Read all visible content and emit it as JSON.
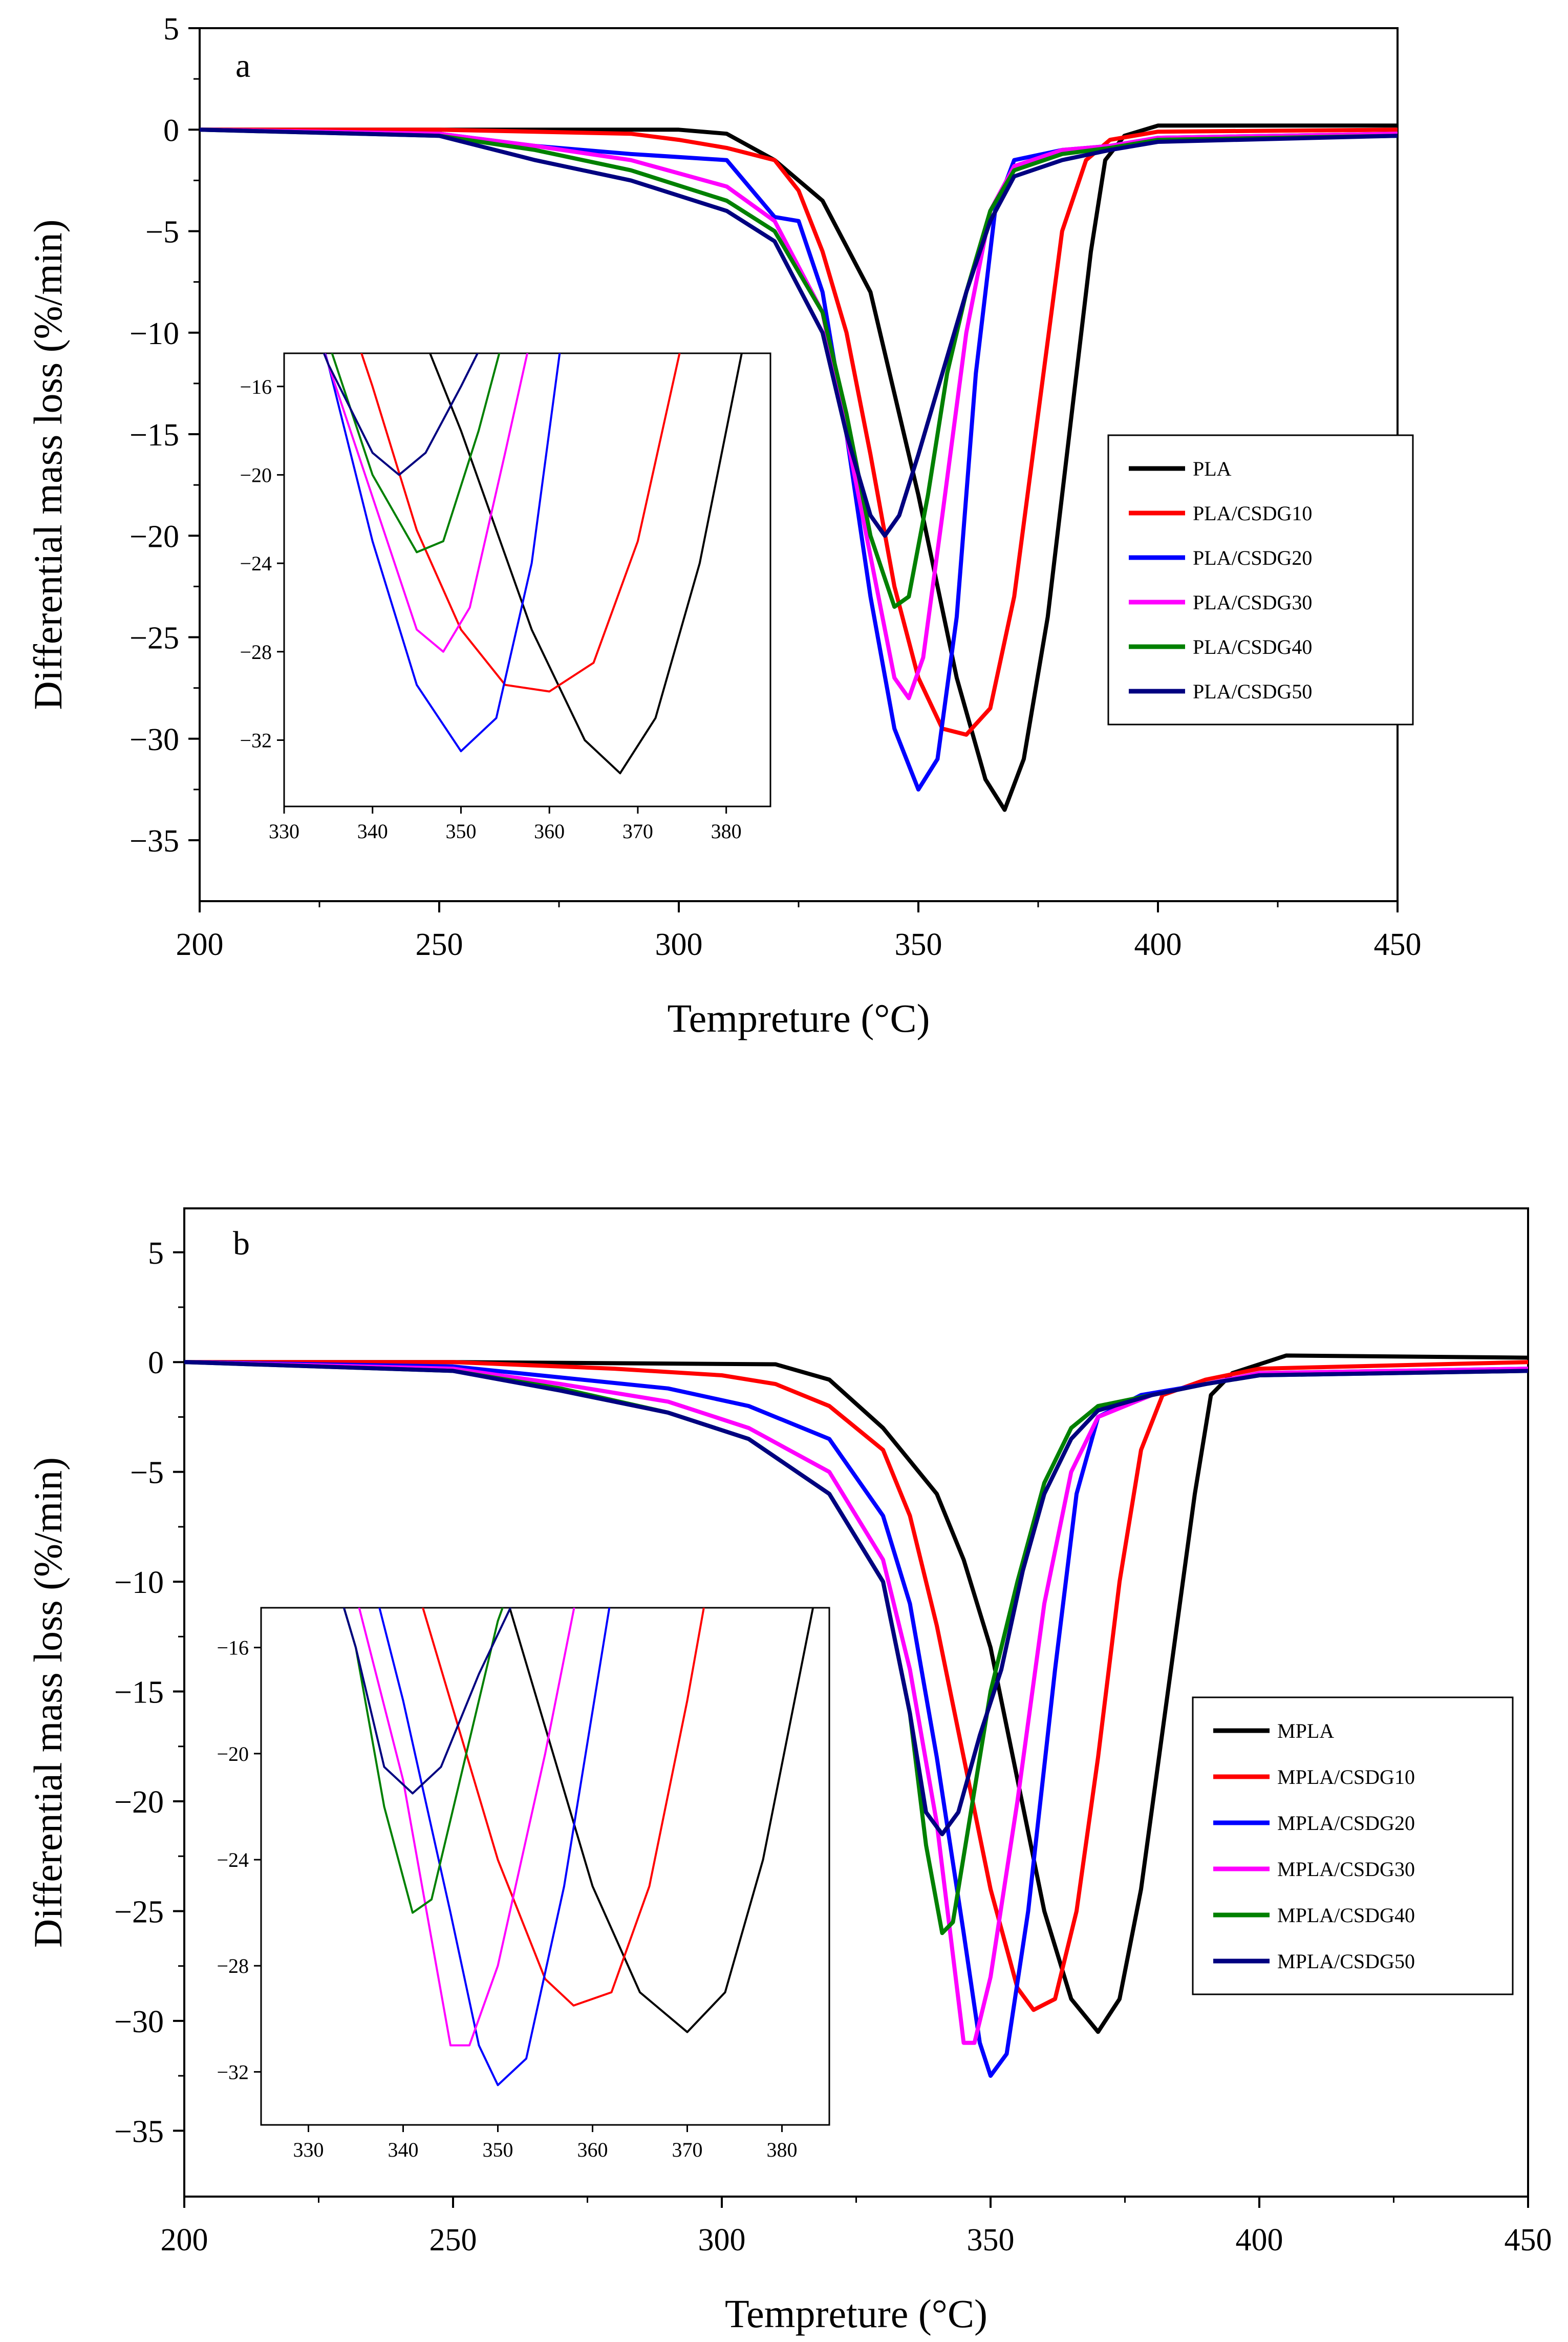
{
  "chart_data": [
    {
      "panel": "a",
      "type": "line",
      "xlabel": "Tempreture (°C)",
      "ylabel": "Differential mass loss (%/min)",
      "xlim": [
        200,
        450
      ],
      "ylim": [
        -38,
        5
      ],
      "xticks": [
        200,
        250,
        300,
        350,
        400,
        450
      ],
      "yticks": [
        5,
        0,
        -5,
        -10,
        -15,
        -20,
        -25,
        -30,
        -35
      ],
      "grid": false,
      "legend_position": "right",
      "series": [
        {
          "name": "PLA",
          "color": "#000000",
          "points": [
            [
              200,
              0
            ],
            [
              250,
              0
            ],
            [
              300,
              0
            ],
            [
              310,
              -0.2
            ],
            [
              320,
              -1.5
            ],
            [
              330,
              -3.5
            ],
            [
              340,
              -8
            ],
            [
              350,
              -18
            ],
            [
              358,
              -27
            ],
            [
              364,
              -32
            ],
            [
              368,
              -33.5
            ],
            [
              372,
              -31
            ],
            [
              377,
              -24
            ],
            [
              382,
              -14
            ],
            [
              386,
              -6
            ],
            [
              389,
              -1.5
            ],
            [
              393,
              -0.3
            ],
            [
              400,
              0.2
            ],
            [
              450,
              0.2
            ]
          ]
        },
        {
          "name": "PLA/CSDG10",
          "color": "#ff0000",
          "points": [
            [
              200,
              0
            ],
            [
              250,
              0
            ],
            [
              290,
              -0.2
            ],
            [
              300,
              -0.5
            ],
            [
              310,
              -0.9
            ],
            [
              320,
              -1.5
            ],
            [
              325,
              -3
            ],
            [
              330,
              -6
            ],
            [
              335,
              -10
            ],
            [
              340,
              -16
            ],
            [
              345,
              -22.5
            ],
            [
              350,
              -27
            ],
            [
              355,
              -29.5
            ],
            [
              360,
              -29.8
            ],
            [
              365,
              -28.5
            ],
            [
              370,
              -23
            ],
            [
              375,
              -14
            ],
            [
              380,
              -5
            ],
            [
              385,
              -1.5
            ],
            [
              390,
              -0.5
            ],
            [
              400,
              -0.1
            ],
            [
              450,
              0
            ]
          ]
        },
        {
          "name": "PLA/CSDG20",
          "color": "#0000ff",
          "points": [
            [
              200,
              0
            ],
            [
              250,
              -0.2
            ],
            [
              270,
              -0.8
            ],
            [
              290,
              -1.2
            ],
            [
              310,
              -1.5
            ],
            [
              320,
              -4.3
            ],
            [
              325,
              -4.5
            ],
            [
              330,
              -8
            ],
            [
              335,
              -15
            ],
            [
              340,
              -23
            ],
            [
              345,
              -29.5
            ],
            [
              350,
              -32.5
            ],
            [
              354,
              -31
            ],
            [
              358,
              -24
            ],
            [
              362,
              -12
            ],
            [
              366,
              -4
            ],
            [
              370,
              -1.5
            ],
            [
              380,
              -1
            ],
            [
              390,
              -0.8
            ],
            [
              400,
              -0.4
            ],
            [
              450,
              -0.2
            ]
          ]
        },
        {
          "name": "PLA/CSDG30",
          "color": "#ff00ff",
          "points": [
            [
              200,
              0
            ],
            [
              250,
              -0.2
            ],
            [
              270,
              -0.8
            ],
            [
              290,
              -1.5
            ],
            [
              310,
              -2.8
            ],
            [
              320,
              -4.5
            ],
            [
              330,
              -9
            ],
            [
              335,
              -15
            ],
            [
              340,
              -21
            ],
            [
              345,
              -27
            ],
            [
              348,
              -28
            ],
            [
              351,
              -26
            ],
            [
              355,
              -19
            ],
            [
              360,
              -10
            ],
            [
              365,
              -4
            ],
            [
              370,
              -1.8
            ],
            [
              380,
              -1
            ],
            [
              390,
              -0.8
            ],
            [
              400,
              -0.4
            ],
            [
              450,
              -0.2
            ]
          ]
        },
        {
          "name": "PLA/CSDG40",
          "color": "#008000",
          "points": [
            [
              200,
              0
            ],
            [
              250,
              -0.3
            ],
            [
              270,
              -1
            ],
            [
              290,
              -2
            ],
            [
              310,
              -3.5
            ],
            [
              320,
              -5
            ],
            [
              330,
              -9
            ],
            [
              335,
              -14
            ],
            [
              340,
              -20
            ],
            [
              345,
              -23.5
            ],
            [
              348,
              -23
            ],
            [
              352,
              -18
            ],
            [
              356,
              -12
            ],
            [
              360,
              -8
            ],
            [
              365,
              -4
            ],
            [
              370,
              -2
            ],
            [
              380,
              -1.2
            ],
            [
              390,
              -0.9
            ],
            [
              400,
              -0.5
            ],
            [
              450,
              -0.3
            ]
          ]
        },
        {
          "name": "PLA/CSDG50",
          "color": "#000080",
          "points": [
            [
              200,
              0
            ],
            [
              250,
              -0.3
            ],
            [
              270,
              -1.5
            ],
            [
              290,
              -2.5
            ],
            [
              310,
              -4
            ],
            [
              320,
              -5.5
            ],
            [
              330,
              -10
            ],
            [
              335,
              -15
            ],
            [
              340,
              -19
            ],
            [
              343,
              -20
            ],
            [
              346,
              -19
            ],
            [
              350,
              -16
            ],
            [
              355,
              -12
            ],
            [
              360,
              -8
            ],
            [
              365,
              -4.5
            ],
            [
              370,
              -2.3
            ],
            [
              380,
              -1.5
            ],
            [
              390,
              -1
            ],
            [
              400,
              -0.6
            ],
            [
              450,
              -0.3
            ]
          ]
        }
      ],
      "inset": {
        "xlim": [
          330,
          385
        ],
        "ylim": [
          -35,
          -14.5
        ],
        "xticks": [
          330,
          340,
          350,
          360,
          370,
          380
        ],
        "yticks": [
          -16,
          -20,
          -24,
          -28,
          -32
        ]
      }
    },
    {
      "panel": "b",
      "type": "line",
      "xlabel": "Tempreture (°C)",
      "ylabel": "Differential mass loss (%/min)",
      "xlim": [
        200,
        450
      ],
      "ylim": [
        -38,
        7
      ],
      "xticks": [
        200,
        250,
        300,
        350,
        400,
        450
      ],
      "yticks": [
        5,
        0,
        -5,
        -10,
        -15,
        -20,
        -25,
        -30,
        -35
      ],
      "grid": false,
      "legend_position": "right",
      "series": [
        {
          "name": "MPLA",
          "color": "#000000",
          "points": [
            [
              200,
              0
            ],
            [
              250,
              0
            ],
            [
              310,
              -0.1
            ],
            [
              320,
              -0.8
            ],
            [
              330,
              -3
            ],
            [
              340,
              -6
            ],
            [
              345,
              -9
            ],
            [
              350,
              -13
            ],
            [
              355,
              -19
            ],
            [
              360,
              -25
            ],
            [
              365,
              -29
            ],
            [
              370,
              -30.5
            ],
            [
              374,
              -29
            ],
            [
              378,
              -24
            ],
            [
              383,
              -15
            ],
            [
              388,
              -6
            ],
            [
              391,
              -1.5
            ],
            [
              395,
              -0.5
            ],
            [
              405,
              0.3
            ],
            [
              450,
              0.2
            ]
          ]
        },
        {
          "name": "MPLA/CSDG10",
          "color": "#ff0000",
          "points": [
            [
              200,
              0
            ],
            [
              250,
              0
            ],
            [
              280,
              -0.3
            ],
            [
              300,
              -0.6
            ],
            [
              310,
              -1
            ],
            [
              320,
              -2
            ],
            [
              330,
              -4
            ],
            [
              335,
              -7
            ],
            [
              340,
              -12
            ],
            [
              345,
              -18
            ],
            [
              350,
              -24
            ],
            [
              355,
              -28.5
            ],
            [
              358,
              -29.5
            ],
            [
              362,
              -29
            ],
            [
              366,
              -25
            ],
            [
              370,
              -18
            ],
            [
              374,
              -10
            ],
            [
              378,
              -4
            ],
            [
              382,
              -1.5
            ],
            [
              390,
              -0.8
            ],
            [
              400,
              -0.3
            ],
            [
              450,
              0
            ]
          ]
        },
        {
          "name": "MPLA/CSDG20",
          "color": "#0000ff",
          "points": [
            [
              200,
              0
            ],
            [
              250,
              -0.2
            ],
            [
              270,
              -0.7
            ],
            [
              290,
              -1.2
            ],
            [
              305,
              -2
            ],
            [
              320,
              -3.5
            ],
            [
              330,
              -7
            ],
            [
              335,
              -11
            ],
            [
              340,
              -18
            ],
            [
              345,
              -26
            ],
            [
              348,
              -31
            ],
            [
              350,
              -32.5
            ],
            [
              353,
              -31.5
            ],
            [
              357,
              -25
            ],
            [
              362,
              -14
            ],
            [
              366,
              -6
            ],
            [
              370,
              -2.5
            ],
            [
              378,
              -1.5
            ],
            [
              390,
              -1
            ],
            [
              400,
              -0.5
            ],
            [
              450,
              -0.3
            ]
          ]
        },
        {
          "name": "MPLA/CSDG30",
          "color": "#ff00ff",
          "points": [
            [
              200,
              0
            ],
            [
              250,
              -0.3
            ],
            [
              270,
              -1
            ],
            [
              290,
              -1.8
            ],
            [
              305,
              -3
            ],
            [
              320,
              -5
            ],
            [
              330,
              -9
            ],
            [
              335,
              -14
            ],
            [
              340,
              -21
            ],
            [
              343,
              -27
            ],
            [
              345,
              -31
            ],
            [
              347,
              -31
            ],
            [
              350,
              -28
            ],
            [
              355,
              -20
            ],
            [
              360,
              -11
            ],
            [
              365,
              -5
            ],
            [
              370,
              -2.5
            ],
            [
              380,
              -1.5
            ],
            [
              390,
              -1
            ],
            [
              400,
              -0.5
            ],
            [
              450,
              -0.3
            ]
          ]
        },
        {
          "name": "MPLA/CSDG40",
          "color": "#008000",
          "points": [
            [
              200,
              0
            ],
            [
              250,
              -0.4
            ],
            [
              270,
              -1.2
            ],
            [
              290,
              -2.3
            ],
            [
              305,
              -3.5
            ],
            [
              320,
              -6
            ],
            [
              330,
              -10
            ],
            [
              335,
              -16
            ],
            [
              338,
              -22
            ],
            [
              341,
              -26
            ],
            [
              343,
              -25.5
            ],
            [
              346,
              -21
            ],
            [
              350,
              -15
            ],
            [
              355,
              -10
            ],
            [
              360,
              -5.5
            ],
            [
              365,
              -3
            ],
            [
              370,
              -2
            ],
            [
              380,
              -1.5
            ],
            [
              390,
              -1
            ],
            [
              400,
              -0.6
            ],
            [
              450,
              -0.4
            ]
          ]
        },
        {
          "name": "MPLA/CSDG50",
          "color": "#000080",
          "points": [
            [
              200,
              0
            ],
            [
              250,
              -0.4
            ],
            [
              270,
              -1.3
            ],
            [
              290,
              -2.3
            ],
            [
              305,
              -3.5
            ],
            [
              320,
              -6
            ],
            [
              330,
              -10
            ],
            [
              335,
              -16
            ],
            [
              338,
              -20.5
            ],
            [
              341,
              -21.5
            ],
            [
              344,
              -20.5
            ],
            [
              348,
              -17
            ],
            [
              352,
              -14
            ],
            [
              356,
              -9.5
            ],
            [
              360,
              -6
            ],
            [
              365,
              -3.5
            ],
            [
              370,
              -2.2
            ],
            [
              380,
              -1.5
            ],
            [
              390,
              -1
            ],
            [
              400,
              -0.6
            ],
            [
              450,
              -0.4
            ]
          ]
        }
      ],
      "inset": {
        "xlim": [
          325,
          385
        ],
        "ylim": [
          -34,
          -14.5
        ],
        "xticks": [
          330,
          340,
          350,
          360,
          370,
          380
        ],
        "yticks": [
          -16,
          -20,
          -24,
          -28,
          -32
        ]
      }
    }
  ]
}
